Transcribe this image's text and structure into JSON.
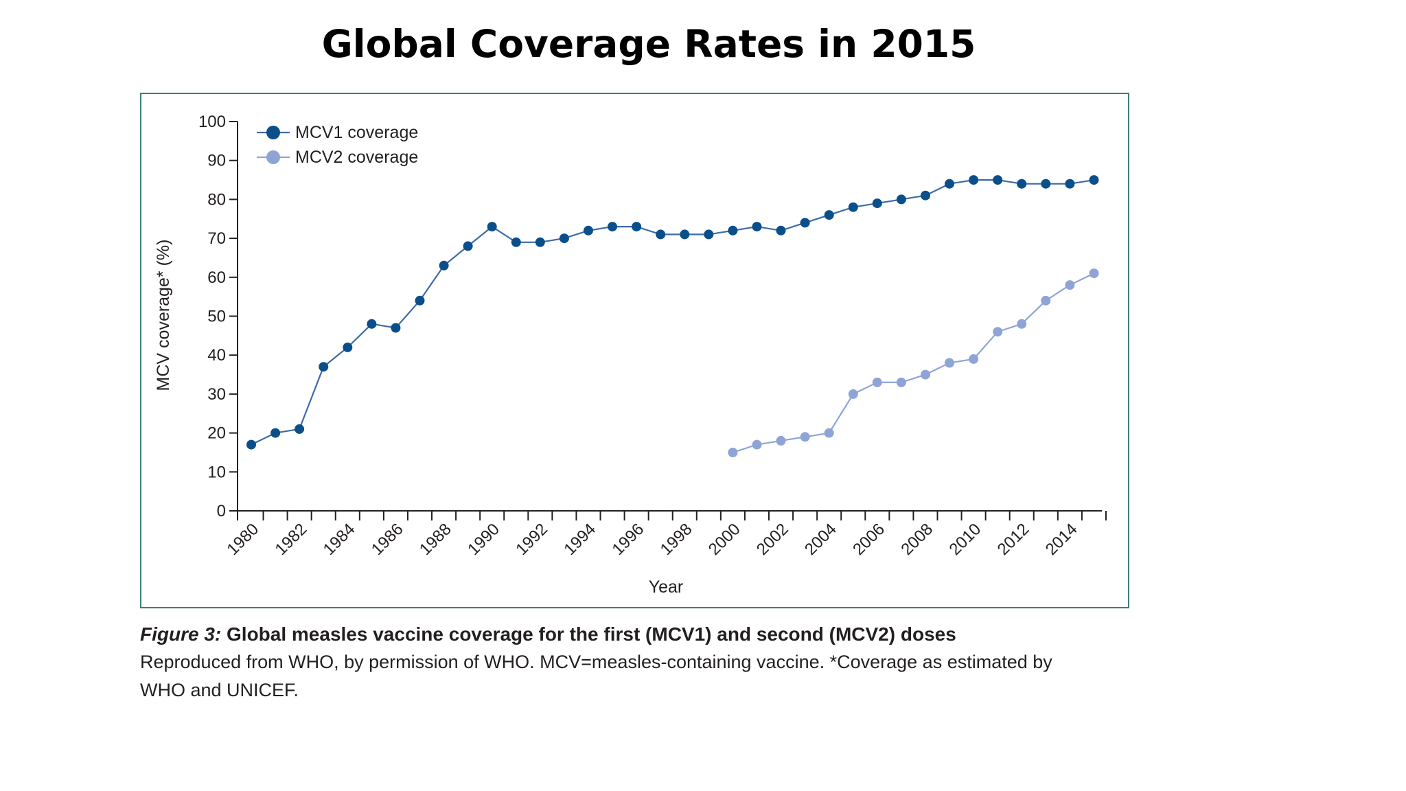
{
  "slide": {
    "title": "Global Coverage Rates in 2015"
  },
  "caption": {
    "figure_label": "Figure 3:",
    "figure_title": "Global measles vaccine coverage for the first (MCV1) and second (MCV2) doses",
    "line2": "Reproduced from WHO, by permission of  WHO. MCV=measles-containing vaccine. *Coverage as estimated by",
    "line3": "WHO and UNICEF."
  },
  "chart_data": {
    "type": "line",
    "xlabel": "Year",
    "ylabel": "MCV coverage* (%)",
    "ylim": [
      0,
      100
    ],
    "yticks": [
      0,
      10,
      20,
      30,
      40,
      50,
      60,
      70,
      80,
      90,
      100
    ],
    "xlim": [
      1980,
      2015
    ],
    "x_tick_labels": [
      "1980",
      "1982",
      "1984",
      "1986",
      "1988",
      "1990",
      "1992",
      "1994",
      "1996",
      "1998",
      "2000",
      "2002",
      "2004",
      "2006",
      "2008",
      "2010",
      "2012",
      "2014"
    ],
    "grid": false,
    "legend_position": "top-left",
    "series": [
      {
        "name": "MCV1 coverage",
        "color": "#0b4f8a",
        "line_color": "#3d6aa8",
        "x": [
          1980,
          1981,
          1982,
          1983,
          1984,
          1985,
          1986,
          1987,
          1988,
          1989,
          1990,
          1991,
          1992,
          1993,
          1994,
          1995,
          1996,
          1997,
          1998,
          1999,
          2000,
          2001,
          2002,
          2003,
          2004,
          2005,
          2006,
          2007,
          2008,
          2009,
          2010,
          2011,
          2012,
          2013,
          2014,
          2015
        ],
        "values": [
          17,
          20,
          21,
          37,
          42,
          48,
          47,
          54,
          63,
          68,
          73,
          69,
          69,
          70,
          72,
          73,
          73,
          71,
          71,
          71,
          72,
          73,
          72,
          74,
          76,
          78,
          79,
          80,
          81,
          84,
          85,
          85,
          84,
          84,
          84,
          85
        ]
      },
      {
        "name": "MCV2 coverage",
        "color": "#8fa4d6",
        "line_color": "#8fa4d6",
        "x": [
          2000,
          2001,
          2002,
          2003,
          2004,
          2005,
          2006,
          2007,
          2008,
          2009,
          2010,
          2011,
          2012,
          2013,
          2014,
          2015
        ],
        "values": [
          15,
          17,
          18,
          19,
          20,
          30,
          33,
          33,
          35,
          38,
          39,
          46,
          48,
          54,
          58,
          61
        ]
      }
    ]
  }
}
